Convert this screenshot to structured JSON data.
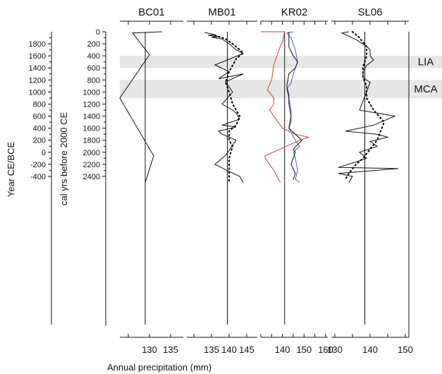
{
  "figure": {
    "left_axis_title": "Year CE/BCE",
    "right_axis_title": "cal yrs before 2000 CE",
    "x_axis_title": "Annual precipitation (mm)"
  },
  "colors": {
    "band": "#e6e6e6",
    "black": "#111111",
    "red": "#d83a3a",
    "blue": "#4a5fb0"
  },
  "chart_data": {
    "type": "line",
    "bands": [
      {
        "label": "LIA",
        "from": 400,
        "to": 600
      },
      {
        "label": "MCA",
        "from": 800,
        "to": 1100
      }
    ],
    "left_axis": {
      "label": "Year CE/BCE",
      "ticks": [
        1800,
        1600,
        1400,
        1200,
        1000,
        800,
        600,
        400,
        200,
        0,
        -200,
        -400
      ]
    },
    "y_axis": {
      "label": "cal yrs before 2000 CE",
      "ticks": [
        0,
        200,
        400,
        600,
        800,
        1000,
        1200,
        1400,
        1600,
        1800,
        2000,
        2200,
        2400
      ],
      "range": [
        0,
        2450
      ],
      "inverted": true
    },
    "xlabel": "Annual precipitation (mm)",
    "panels": [
      {
        "title": "BC01",
        "xlim": [
          123,
          138
        ],
        "ticks": [
          130,
          135
        ],
        "mean": 129,
        "series": [
          {
            "color": "black",
            "style": "solid",
            "points": [
              [
                133,
                0
              ],
              [
                126,
                20
              ],
              [
                130,
                380
              ],
              [
                123,
                1100
              ],
              [
                131,
                2060
              ],
              [
                129,
                2500
              ]
            ]
          }
        ]
      },
      {
        "title": "MB01",
        "xlim": [
          128,
          148
        ],
        "ticks": [
          135,
          140,
          145
        ],
        "mean": 139.5,
        "series": [
          {
            "color": "black",
            "style": "solid",
            "points": [
              [
                133,
                10
              ],
              [
                136,
                50
              ],
              [
                134,
                60
              ],
              [
                137,
                80
              ],
              [
                135,
                90
              ],
              [
                136,
                100
              ],
              [
                138,
                120
              ],
              [
                140,
                200
              ],
              [
                142,
                300
              ],
              [
                144,
                360
              ],
              [
                139,
                480
              ],
              [
                136,
                550
              ],
              [
                140,
                660
              ],
              [
                137,
                780
              ],
              [
                144,
                700
              ],
              [
                139,
                830
              ],
              [
                141,
                1000
              ],
              [
                138,
                1200
              ],
              [
                141,
                1300
              ],
              [
                142,
                1350
              ],
              [
                143,
                1450
              ],
              [
                138,
                1550
              ],
              [
                142,
                1580
              ],
              [
                137,
                1650
              ],
              [
                138,
                1700
              ],
              [
                142,
                1800
              ],
              [
                139,
                2050
              ],
              [
                136,
                2200
              ],
              [
                140,
                2320
              ],
              [
                143,
                2400
              ],
              [
                144,
                2500
              ]
            ]
          },
          {
            "color": "black",
            "style": "dotted",
            "points": [
              [
                136,
                60
              ],
              [
                139,
                120
              ],
              [
                141,
                200
              ],
              [
                143,
                300
              ],
              [
                144,
                350
              ],
              [
                142,
                450
              ],
              [
                141,
                560
              ],
              [
                140,
                660
              ],
              [
                139,
                840
              ],
              [
                140,
                1000
              ],
              [
                141,
                1200
              ],
              [
                142,
                1300
              ],
              [
                143,
                1400
              ],
              [
                142,
                1550
              ],
              [
                140,
                1650
              ],
              [
                140,
                1800
              ],
              [
                141,
                1900
              ],
              [
                140,
                2100
              ],
              [
                140,
                2300
              ],
              [
                140,
                2500
              ]
            ]
          }
        ]
      },
      {
        "title": "KR02",
        "xlim": [
          130,
          161
        ],
        "ticks": [
          140,
          150,
          160
        ],
        "mean": 141,
        "series": [
          {
            "color": "red",
            "style": "solid",
            "points": [
              [
                130,
                0
              ],
              [
                141,
                0
              ],
              [
                140,
                180
              ],
              [
                139,
                240
              ],
              [
                136,
                550
              ],
              [
                135,
                800
              ],
              [
                133,
                960
              ],
              [
                136,
                1100
              ],
              [
                136,
                1200
              ],
              [
                134,
                1300
              ],
              [
                137,
                1450
              ],
              [
                140,
                1600
              ],
              [
                146,
                1700
              ],
              [
                152,
                1750
              ],
              [
                148,
                1800
              ],
              [
                132,
                2060
              ],
              [
                132,
                2100
              ],
              [
                134,
                2200
              ],
              [
                136,
                2300
              ],
              [
                139,
                2500
              ]
            ]
          },
          {
            "color": "blue",
            "style": "solid",
            "points": [
              [
                145,
                0
              ],
              [
                142,
                20
              ],
              [
                144,
                100
              ],
              [
                146,
                300
              ],
              [
                147,
                500
              ],
              [
                145,
                700
              ],
              [
                144,
                850
              ],
              [
                142,
                950
              ],
              [
                143,
                1100
              ],
              [
                144,
                1300
              ],
              [
                144,
                1500
              ],
              [
                143,
                1600
              ],
              [
                146,
                1800
              ],
              [
                148,
                1900
              ],
              [
                145,
                2000
              ],
              [
                146,
                2100
              ],
              [
                147,
                2300
              ],
              [
                146,
                2450
              ],
              [
                148,
                2500
              ]
            ]
          },
          {
            "color": "black",
            "style": "solid",
            "points": [
              [
                143,
                0
              ],
              [
                143,
                50
              ],
              [
                143,
                250
              ],
              [
                145,
                400
              ],
              [
                147,
                500
              ],
              [
                146,
                600
              ],
              [
                143,
                700
              ],
              [
                142,
                900
              ],
              [
                143,
                1050
              ],
              [
                143,
                1200
              ],
              [
                144,
                1400
              ],
              [
                143,
                1600
              ],
              [
                146,
                1700
              ],
              [
                149,
                1800
              ],
              [
                145,
                1950
              ],
              [
                146,
                2000
              ],
              [
                144,
                2200
              ],
              [
                146,
                2350
              ],
              [
                145,
                2450
              ]
            ]
          }
        ]
      },
      {
        "title": "SL06",
        "xlim": [
          129,
          151
        ],
        "ticks": [
          130,
          140,
          150
        ],
        "mean": 138.5,
        "series": [
          {
            "color": "black",
            "style": "solid",
            "points": [
              [
                134,
                0
              ],
              [
                132,
                20
              ],
              [
                136,
                130
              ],
              [
                139,
                240
              ],
              [
                140,
                300
              ],
              [
                140,
                400
              ],
              [
                141,
                470
              ],
              [
                139,
                560
              ],
              [
                138,
                660
              ],
              [
                138,
                760
              ],
              [
                140,
                840
              ],
              [
                139,
                1000
              ],
              [
                138,
                1150
              ],
              [
                137,
                1300
              ],
              [
                147,
                1400
              ],
              [
                141,
                1550
              ],
              [
                133,
                1650
              ],
              [
                142,
                1700
              ],
              [
                145,
                1750
              ],
              [
                140,
                1820
              ],
              [
                142,
                1900
              ],
              [
                137,
                2000
              ],
              [
                139,
                2100
              ],
              [
                136,
                2160
              ],
              [
                131,
                2250
              ],
              [
                148,
                2270
              ],
              [
                131,
                2350
              ],
              [
                135,
                2400
              ],
              [
                134,
                2500
              ]
            ]
          },
          {
            "color": "black",
            "style": "dotted",
            "points": [
              [
                135,
                0
              ],
              [
                137,
                100
              ],
              [
                139,
                250
              ],
              [
                139,
                400
              ],
              [
                138,
                580
              ],
              [
                138,
                760
              ],
              [
                139,
                900
              ],
              [
                139,
                1100
              ],
              [
                141,
                1300
              ],
              [
                144,
                1500
              ],
              [
                143,
                1650
              ],
              [
                142,
                1800
              ],
              [
                140,
                1950
              ],
              [
                138,
                2100
              ],
              [
                136,
                2200
              ],
              [
                134,
                2350
              ],
              [
                133,
                2450
              ]
            ]
          }
        ]
      }
    ]
  }
}
